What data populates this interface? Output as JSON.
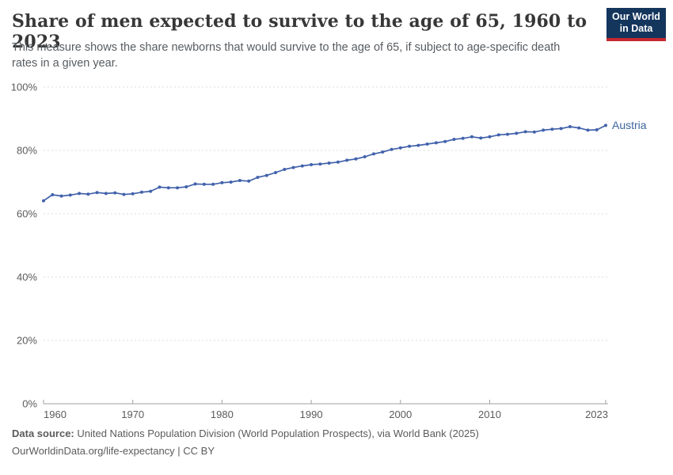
{
  "header": {
    "title": "Share of men expected to survive to the age of 65, 1960 to 2023",
    "subtitle": "This measure shows the share newborns that would survive to the age of 65, if subject to age-specific death rates in a given year.",
    "logo": {
      "line1": "Our World",
      "line2": "in Data"
    }
  },
  "chart_data": {
    "type": "line",
    "title": "Share of men expected to survive to the age of 65, 1960 to 2023",
    "xlabel": "",
    "ylabel": "",
    "ylim": [
      0,
      100
    ],
    "grid": "horizontal-dashed",
    "legend_position": "end-of-line-label",
    "entity_label": "Austria",
    "x_ticks": [
      {
        "v": 1960,
        "label": "1960"
      },
      {
        "v": 1970,
        "label": "1970"
      },
      {
        "v": 1980,
        "label": "1980"
      },
      {
        "v": 1990,
        "label": "1990"
      },
      {
        "v": 2000,
        "label": "2000"
      },
      {
        "v": 2010,
        "label": "2010"
      },
      {
        "v": 2023,
        "label": "2023"
      }
    ],
    "y_ticks": [
      {
        "v": 0,
        "label": "0%"
      },
      {
        "v": 20,
        "label": "20%"
      },
      {
        "v": 40,
        "label": "40%"
      },
      {
        "v": 60,
        "label": "60%"
      },
      {
        "v": 80,
        "label": "80%"
      },
      {
        "v": 100,
        "label": "100%"
      }
    ],
    "x": [
      1960,
      1961,
      1962,
      1963,
      1964,
      1965,
      1966,
      1967,
      1968,
      1969,
      1970,
      1971,
      1972,
      1973,
      1974,
      1975,
      1976,
      1977,
      1978,
      1979,
      1980,
      1981,
      1982,
      1983,
      1984,
      1985,
      1986,
      1987,
      1988,
      1989,
      1990,
      1991,
      1992,
      1993,
      1994,
      1995,
      1996,
      1997,
      1998,
      1999,
      2000,
      2001,
      2002,
      2003,
      2004,
      2005,
      2006,
      2007,
      2008,
      2009,
      2010,
      2011,
      2012,
      2013,
      2014,
      2015,
      2016,
      2017,
      2018,
      2019,
      2020,
      2021,
      2022,
      2023
    ],
    "series": [
      {
        "name": "Austria",
        "values": [
          64.1,
          66.0,
          65.6,
          65.9,
          66.4,
          66.2,
          66.7,
          66.4,
          66.6,
          66.1,
          66.3,
          66.8,
          67.1,
          68.4,
          68.2,
          68.2,
          68.5,
          69.4,
          69.3,
          69.3,
          69.8,
          70.0,
          70.5,
          70.3,
          71.5,
          72.1,
          73.0,
          74.0,
          74.6,
          75.1,
          75.5,
          75.7,
          76.0,
          76.3,
          76.9,
          77.3,
          78.0,
          78.9,
          79.5,
          80.3,
          80.8,
          81.3,
          81.6,
          82.0,
          82.4,
          82.8,
          83.5,
          83.8,
          84.3,
          83.9,
          84.3,
          84.9,
          85.1,
          85.4,
          85.9,
          85.8,
          86.4,
          86.7,
          86.9,
          87.5,
          87.1,
          86.4,
          86.5,
          87.9
        ]
      }
    ]
  },
  "colors": {
    "line": "#4262ab",
    "entity_label": "#3d649f",
    "grid": "#dcdcdc",
    "axis": "#a2a2a2",
    "tick_label": "#5b5b5b",
    "logo_bg": "#14355c",
    "logo_stripe": "#c4282f"
  },
  "footer": {
    "source_label": "Data source:",
    "source_text": " United Nations Population Division (World Population Prospects), via World Bank (2025)",
    "license_text": "OurWorldinData.org/life-expectancy | CC BY"
  }
}
